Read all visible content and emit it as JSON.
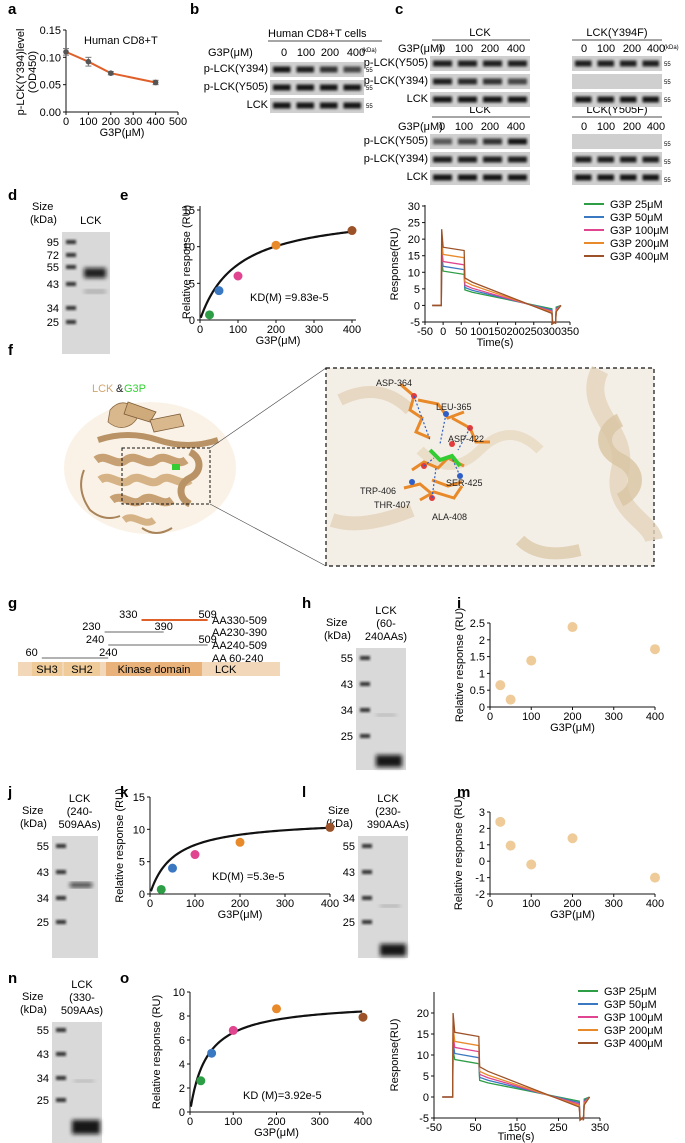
{
  "panels": {
    "a": "a",
    "b": "b",
    "c": "c",
    "d": "d",
    "e": "e",
    "f": "f",
    "g": "g",
    "h": "h",
    "i": "i",
    "j": "j",
    "k": "k",
    "l": "l",
    "m": "m",
    "n": "n",
    "o": "o"
  },
  "a": {
    "annotation": "Human CD8+T",
    "ylabel_1": "p-LCK(Y394)level",
    "ylabel_2": "(OD450)",
    "xlabel": "G3P(μM)",
    "xticks": [
      "0",
      "100",
      "200",
      "300",
      "400",
      "500"
    ],
    "yticks": [
      "0.00",
      "0.05",
      "0.10",
      "0.15"
    ]
  },
  "b": {
    "title": "Human CD8+T cells",
    "conc_label": "G3P(μM)",
    "concs": [
      "0",
      "100",
      "200",
      "400"
    ],
    "kda": "(kDa)",
    "rows": [
      "p-LCK(Y394)",
      "p-LCK(Y505)",
      "LCK"
    ],
    "mw": [
      "55",
      "55",
      "55"
    ]
  },
  "c": {
    "top_left": "LCK",
    "top_right": "LCK(Y394F)",
    "bottom_left": "LCK",
    "bottom_right": "LCK(Y505F)",
    "conc_label": "G3P(μM)",
    "concs": [
      "0",
      "100",
      "200",
      "400"
    ],
    "kda": "(kDa)",
    "rows_top": [
      "p-LCK(Y505)",
      "p-LCK(Y394)",
      "LCK"
    ],
    "rows_bottom": [
      "p-LCK(Y505)",
      "p-LCK(Y394)",
      "LCK"
    ],
    "mw": [
      "55",
      "55",
      "55"
    ]
  },
  "d": {
    "size": "Size",
    "kda": "(kDa)",
    "lane": "LCK",
    "ladder": [
      "95",
      "72",
      "55",
      "43",
      "34",
      "25"
    ]
  },
  "e": {
    "kd": "KD(M) =9.83e-5",
    "sensor_ylabel": "Response(RU)",
    "sensor_xlabel": "Time(s)",
    "sensor_yticks": [
      "-5",
      "0",
      "5",
      "10",
      "15",
      "20",
      "25",
      "30"
    ],
    "sensor_xticks": [
      "-50",
      "0",
      "50",
      "100",
      "150",
      "200",
      "250",
      "300",
      "350"
    ]
  },
  "f": {
    "title_lck": "LCK",
    "title_amp": "&",
    "title_g3p": "G3P",
    "residues": [
      "ASP-364",
      "LEU-365",
      "ASP-422",
      "SER-425",
      "TRP-406",
      "THR-407",
      "ALA-408"
    ]
  },
  "g": {
    "constructs": [
      {
        "start": "330",
        "end": "509",
        "name": "AA330-509"
      },
      {
        "start": "230",
        "end": "390",
        "name": "AA230-390"
      },
      {
        "start": "240",
        "end": "509",
        "name": "AA240-509"
      },
      {
        "start": "60",
        "end": "240",
        "name": "AA  60-240"
      }
    ],
    "domains": [
      "SH3",
      "SH2",
      "Kinase domain"
    ],
    "protein": "LCK"
  },
  "h": {
    "size": "Size",
    "kda": "(kDa)",
    "lane_1": "LCK",
    "lane_2": "(60-",
    "lane_3": "240AAs)",
    "ladder": [
      "55",
      "43",
      "34",
      "25"
    ]
  },
  "j": {
    "size": "Size",
    "kda": "(kDa)",
    "lane_1": "LCK",
    "lane_2": "(240-",
    "lane_3": "509AAs)",
    "ladder": [
      "55",
      "43",
      "34",
      "25"
    ]
  },
  "k": {
    "kd": "KD(M) =5.3e-5"
  },
  "l": {
    "size": "Size",
    "kda": "(kDa)",
    "lane_1": "LCK",
    "lane_2": "(230-",
    "lane_3": "390AAs)",
    "ladder": [
      "55",
      "43",
      "34",
      "25"
    ]
  },
  "n": {
    "size": "Size",
    "kda": "(kDa)",
    "lane_1": "LCK",
    "lane_2": "(330-",
    "lane_3": "509AAs)",
    "ladder": [
      "55",
      "43",
      "34",
      "25"
    ]
  },
  "o": {
    "kd": "KD (M)=3.92e-5",
    "sensor_ylabel": "Response(RU)",
    "sensor_xlabel": "Time(s)",
    "sensor_yticks": [
      "-5",
      "0",
      "5",
      "10",
      "15",
      "20"
    ],
    "sensor_xticks": [
      "-50",
      "50",
      "150",
      "250",
      "350"
    ]
  },
  "legend": [
    "G3P 25μM",
    "G3P 50μM",
    "G3P 100μM",
    "G3P 200μM",
    "G3P 400μM"
  ],
  "colors": {
    "c25": "#2e9e46",
    "c50": "#3a78c2",
    "c100": "#e0458f",
    "c200": "#e8892a",
    "c400": "#9c5228",
    "accent": "#e0602a",
    "tan": "#eecb98",
    "beige": "#f2d7b8"
  },
  "chart_data": [
    {
      "id": "a",
      "type": "line",
      "x": [
        0,
        100,
        200,
        400
      ],
      "values": [
        0.11,
        0.092,
        0.071,
        0.054
      ],
      "errors": [
        0.006,
        0.008,
        0.003,
        0.004
      ],
      "xlabel": "G3P(μM)",
      "ylabel": "p-LCK(Y394)level (OD450)",
      "xlim": [
        0,
        500
      ],
      "ylim": [
        0,
        0.15
      ]
    },
    {
      "id": "e1",
      "type": "scatter",
      "x": [
        25,
        50,
        100,
        200,
        400
      ],
      "values": [
        0.7,
        4.0,
        6.0,
        10.2,
        12.2
      ],
      "xlabel": "G3P(μM)",
      "ylabel": "Relative response (RU)",
      "xlim": [
        0,
        400
      ],
      "ylim": [
        0,
        15
      ],
      "xticks": [
        "0",
        "100",
        "200",
        "300",
        "400"
      ],
      "yticks": [
        "0",
        "5",
        "10",
        "15"
      ],
      "fit": {
        "rmax": 15.0,
        "kd": 98.3
      }
    },
    {
      "id": "e2",
      "type": "line",
      "ylim": [
        -5,
        30
      ],
      "xlim": [
        -50,
        350
      ],
      "series": [
        {
          "name": "G3P 25μM",
          "peak": 13
        },
        {
          "name": "G3P 50μM",
          "peak": 15
        },
        {
          "name": "G3P 100μM",
          "peak": 17
        },
        {
          "name": "G3P 200μM",
          "peak": 20
        },
        {
          "name": "G3P 400μM",
          "peak": 23
        }
      ]
    },
    {
      "id": "i",
      "type": "scatter",
      "x": [
        25,
        50,
        100,
        200,
        400
      ],
      "values": [
        0.65,
        0.22,
        1.38,
        2.38,
        1.72
      ],
      "xlabel": "G3P(μM)",
      "ylabel": "Relative response (RU)",
      "xlim": [
        0,
        400
      ],
      "ylim": [
        0,
        2.5
      ],
      "xticks": [
        "0",
        "100",
        "200",
        "300",
        "400"
      ],
      "yticks": [
        "0",
        "0.5",
        "1",
        "1.5",
        "2",
        "2.5"
      ]
    },
    {
      "id": "k",
      "type": "scatter",
      "x": [
        25,
        50,
        100,
        200,
        400
      ],
      "values": [
        0.7,
        4.0,
        6.1,
        8.0,
        10.3
      ],
      "xlabel": "G3P(μM)",
      "ylabel": "Relative response (RU)",
      "xlim": [
        0,
        400
      ],
      "ylim": [
        0,
        15
      ],
      "xticks": [
        "0",
        "100",
        "200",
        "300",
        "400"
      ],
      "yticks": [
        "0",
        "5",
        "10",
        "15"
      ],
      "fit": {
        "rmax": 11.6,
        "kd": 53
      }
    },
    {
      "id": "m",
      "type": "scatter",
      "x": [
        25,
        50,
        100,
        200,
        400
      ],
      "values": [
        2.4,
        0.95,
        -0.2,
        1.4,
        -1.0
      ],
      "xlabel": "G3P(μM)",
      "ylabel": "Relative response (RU)",
      "xlim": [
        0,
        400
      ],
      "ylim": [
        -2,
        3
      ],
      "xticks": [
        "0",
        "100",
        "200",
        "300",
        "400"
      ],
      "yticks": [
        "-2",
        "-1",
        "0",
        "1",
        "2",
        "3"
      ]
    },
    {
      "id": "o1",
      "type": "scatter",
      "x": [
        25,
        50,
        100,
        200,
        400
      ],
      "values": [
        2.6,
        4.9,
        6.8,
        8.6,
        7.9
      ],
      "xlabel": "G3P(μM)",
      "ylabel": "Relative response (RU)",
      "xlim": [
        0,
        400
      ],
      "ylim": [
        0,
        10
      ],
      "xticks": [
        "0",
        "100",
        "200",
        "300",
        "400"
      ],
      "yticks": [
        "0",
        "2",
        "4",
        "6",
        "8",
        "10"
      ],
      "fit": {
        "rmax": 9.2,
        "kd": 39.2
      }
    },
    {
      "id": "o2",
      "type": "line",
      "ylim": [
        -5,
        25
      ],
      "xlim": [
        -50,
        350
      ],
      "series": [
        {
          "name": "G3P 25μM",
          "peak": 11
        },
        {
          "name": "G3P 50μM",
          "peak": 13
        },
        {
          "name": "G3P 100μM",
          "peak": 15
        },
        {
          "name": "G3P 200μM",
          "peak": 17
        },
        {
          "name": "G3P 400μM",
          "peak": 20
        }
      ]
    }
  ]
}
